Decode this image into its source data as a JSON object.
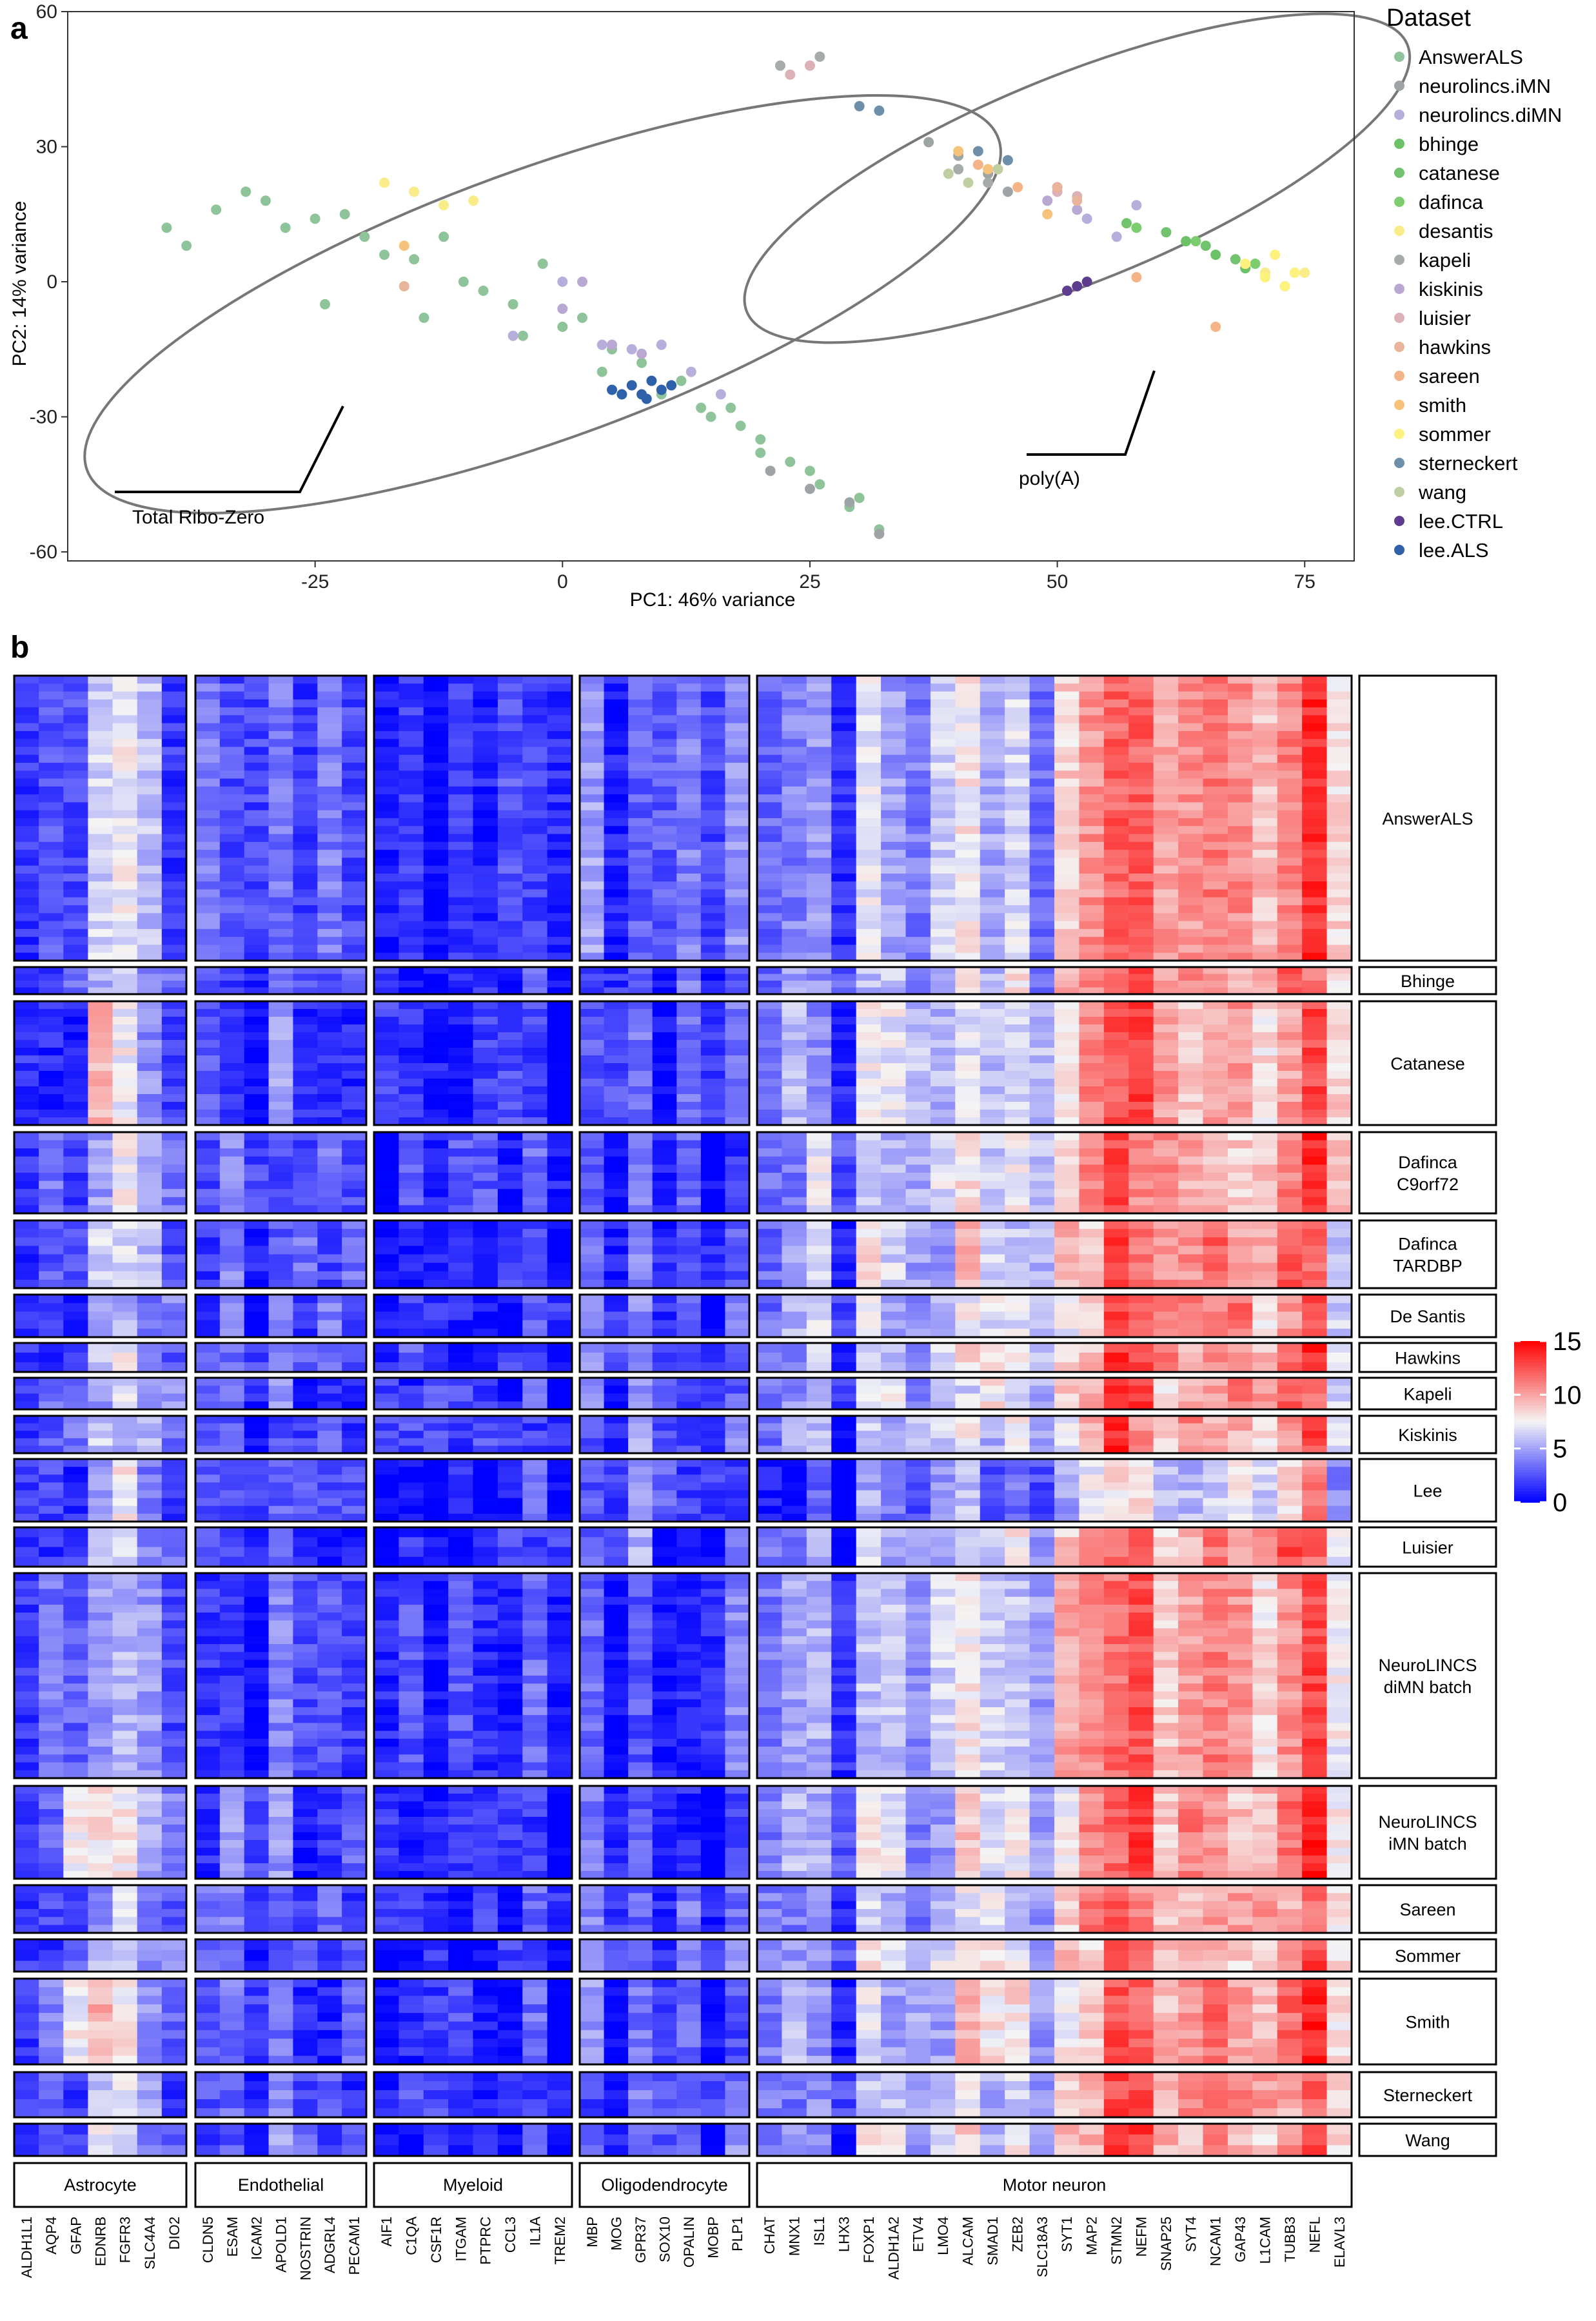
{
  "panels": {
    "a": "a",
    "b": "b"
  },
  "chart_data": [
    {
      "type": "scatter",
      "xlabel": "PC1: 46% variance",
      "ylabel": "PC2: 14% variance",
      "xlim": [
        -50,
        80
      ],
      "ylim": [
        -62,
        60
      ],
      "x_ticks": [
        -25,
        0,
        25,
        50,
        75
      ],
      "y_ticks": [
        -60,
        -30,
        0,
        30,
        60
      ],
      "grid": false,
      "legend_title": "Dataset",
      "legend_position": "right",
      "annotations": [
        "Total Ribo-Zero",
        "poly(A)"
      ],
      "ellipses": [
        {
          "label": "Total Ribo-Zero",
          "cx": -2,
          "cy": -5,
          "rx": 49,
          "ry": 30,
          "angle_deg": 20
        },
        {
          "label": "poly(A)",
          "cx": 52,
          "cy": 23,
          "rx": 36,
          "ry": 23,
          "angle_deg": 22
        }
      ],
      "series": [
        {
          "name": "AnswerALS",
          "color": "#8fc49a",
          "x": [
            -40,
            -35,
            -30,
            -25,
            -20,
            -15,
            -10,
            -5,
            0,
            5,
            -38,
            -28,
            -18,
            -8,
            2,
            8,
            -32,
            -22,
            -12,
            -2,
            4,
            10,
            15,
            20,
            23,
            26,
            29,
            32,
            20,
            25,
            30,
            14,
            18,
            -24,
            -14,
            -4,
            6,
            12,
            17
          ],
          "y": [
            12,
            16,
            18,
            14,
            10,
            5,
            0,
            -5,
            -10,
            -15,
            8,
            12,
            6,
            -2,
            -8,
            -18,
            20,
            15,
            10,
            4,
            -20,
            -25,
            -30,
            -35,
            -40,
            -45,
            -50,
            -55,
            -38,
            -42,
            -48,
            -28,
            -32,
            -5,
            -8,
            -12,
            -25,
            -22,
            -28
          ]
        },
        {
          "name": "neurolincs.iMN",
          "color": "#9ea3a5",
          "x": [
            21,
            25,
            29,
            32,
            37,
            40,
            43,
            45
          ],
          "y": [
            -42,
            -46,
            -49,
            -56,
            31,
            28,
            24,
            20
          ]
        },
        {
          "name": "neurolincs.diMN",
          "color": "#b7aedb",
          "x": [
            -5,
            0,
            4,
            7,
            10,
            13,
            16,
            50,
            53,
            56,
            58
          ],
          "y": [
            -12,
            0,
            -14,
            -15,
            -14,
            -20,
            -25,
            21,
            14,
            10,
            17
          ]
        },
        {
          "name": "bhinge",
          "color": "#6cc267",
          "x": [
            63,
            66,
            69
          ],
          "y": [
            9,
            6,
            3
          ]
        },
        {
          "name": "catanese",
          "color": "#72c36d",
          "x": [
            57,
            61,
            65,
            68,
            71
          ],
          "y": [
            13,
            11,
            8,
            5,
            2
          ]
        },
        {
          "name": "dafinca",
          "color": "#7ccd6d",
          "x": [
            58,
            64,
            70
          ],
          "y": [
            12,
            9,
            4
          ]
        },
        {
          "name": "desantis",
          "color": "#fbec8a",
          "x": [
            -18,
            -15,
            -12,
            -9,
            69,
            71,
            73,
            75
          ],
          "y": [
            22,
            20,
            17,
            18,
            4,
            2,
            -1,
            2
          ]
        },
        {
          "name": "kapeli",
          "color": "#a6aca9",
          "x": [
            22,
            26,
            40,
            43
          ],
          "y": [
            48,
            50,
            25,
            22
          ]
        },
        {
          "name": "kiskinis",
          "color": "#b9a8d2",
          "x": [
            0,
            2,
            5,
            8,
            49,
            52
          ],
          "y": [
            -6,
            0,
            -14,
            -16,
            18,
            16
          ]
        },
        {
          "name": "luisier",
          "color": "#dcb1b7",
          "x": [
            23,
            25,
            50,
            52
          ],
          "y": [
            46,
            48,
            20,
            19
          ]
        },
        {
          "name": "hawkins",
          "color": "#e9b49a",
          "x": [
            -16,
            50,
            52
          ],
          "y": [
            -1,
            21,
            18
          ]
        },
        {
          "name": "sareen",
          "color": "#f4b487",
          "x": [
            42,
            46,
            58,
            66
          ],
          "y": [
            26,
            21,
            1,
            -10
          ]
        },
        {
          "name": "smith",
          "color": "#f7c27a",
          "x": [
            -16,
            40,
            43,
            49
          ],
          "y": [
            8,
            29,
            25,
            15
          ]
        },
        {
          "name": "sommer",
          "color": "#fdf27d",
          "x": [
            69,
            71,
            73,
            74,
            72
          ],
          "y": [
            4,
            1,
            -1,
            2,
            6
          ]
        },
        {
          "name": "sterneckert",
          "color": "#6d8fa9",
          "x": [
            30,
            32,
            42,
            45
          ],
          "y": [
            39,
            38,
            29,
            27
          ]
        },
        {
          "name": "wang",
          "color": "#c0cfa2",
          "x": [
            39,
            41,
            44
          ],
          "y": [
            24,
            22,
            25
          ]
        },
        {
          "name": "lee.CTRL",
          "color": "#5e3d8e",
          "x": [
            51,
            52,
            53
          ],
          "y": [
            -2,
            -1,
            0
          ]
        },
        {
          "name": "lee.ALS",
          "color": "#2f61aa",
          "x": [
            5,
            7,
            8,
            9,
            10,
            11,
            6,
            8.5
          ],
          "y": [
            -24,
            -23,
            -25,
            -22,
            -24,
            -23,
            -25,
            -26
          ]
        }
      ]
    },
    {
      "type": "heatmap",
      "color_scale": {
        "min": 0,
        "max": 15,
        "ticks": [
          0,
          5,
          10,
          15
        ],
        "low": "#0000ff",
        "mid": "#f5f5f5",
        "high": "#ff0000"
      },
      "cell_groups": [
        {
          "name": "Astrocyte",
          "genes": [
            "ALDH1L1",
            "AQP4",
            "GFAP",
            "EDNRB",
            "FGFR3",
            "SLC4A4",
            "DIO2"
          ]
        },
        {
          "name": "Endothelial",
          "genes": [
            "CLDN5",
            "ESAM",
            "ICAM2",
            "APOLD1",
            "NOSTRIN",
            "ADGRL4",
            "PECAM1"
          ]
        },
        {
          "name": "Myeloid",
          "genes": [
            "AIF1",
            "C1QA",
            "CSF1R",
            "ITGAM",
            "PTPRC",
            "CCL3",
            "IL1A",
            "TREM2"
          ]
        },
        {
          "name": "Oligodendrocyte",
          "genes": [
            "MBP",
            "MOG",
            "GPR37",
            "SOX10",
            "OPALIN",
            "MOBP",
            "PLP1"
          ]
        },
        {
          "name": "Motor neuron",
          "genes": [
            "CHAT",
            "MNX1",
            "ISL1",
            "LHX3",
            "FOXP1",
            "ALDH1A2",
            "ETV4",
            "LMO4",
            "ALCAM",
            "SMAD1",
            "ZEB2",
            "SLC18A3",
            "SYT1",
            "MAP2",
            "STMN2",
            "NEFM",
            "SNAP25",
            "SYT4",
            "NCAM1",
            "GAP43",
            "L1CAM",
            "TUBB3",
            "NEFL",
            "ELAVL3"
          ]
        }
      ],
      "datasets": [
        {
          "label": [
            "AnswerALS"
          ],
          "samples": 36
        },
        {
          "label": [
            "Bhinge"
          ],
          "samples": 4
        },
        {
          "label": [
            "Catanese"
          ],
          "samples": 16
        },
        {
          "label": [
            "Dafinca",
            "C9orf72"
          ],
          "samples": 10
        },
        {
          "label": [
            "Dafinca",
            "TARDBP"
          ],
          "samples": 8
        },
        {
          "label": [
            "De Santis"
          ],
          "samples": 5
        },
        {
          "label": [
            "Hawkins"
          ],
          "samples": 3
        },
        {
          "label": [
            "Kapeli"
          ],
          "samples": 4
        },
        {
          "label": [
            "Kiskinis"
          ],
          "samples": 5
        },
        {
          "label": [
            "Lee"
          ],
          "samples": 8
        },
        {
          "label": [
            "Luisier"
          ],
          "samples": 4
        },
        {
          "label": [
            "NeuroLINCS",
            "diMN batch"
          ],
          "samples": 26
        },
        {
          "label": [
            "NeuroLINCS",
            "iMN batch"
          ],
          "samples": 12
        },
        {
          "label": [
            "Sareen"
          ],
          "samples": 6
        },
        {
          "label": [
            "Sommer"
          ],
          "samples": 3
        },
        {
          "label": [
            "Smith"
          ],
          "samples": 10
        },
        {
          "label": [
            "Sterneckert"
          ],
          "samples": 5
        },
        {
          "label": [
            "Wang"
          ],
          "samples": 3
        }
      ],
      "gene_mean_expression": {
        "ALDH1L1": 3,
        "AQP4": 2.5,
        "GFAP": 2,
        "EDNRB": 6,
        "FGFR3": 6.5,
        "SLC4A4": 4.5,
        "DIO2": 3,
        "CLDN5": 2.5,
        "ESAM": 3,
        "ICAM2": 1.5,
        "APOLD1": 3.5,
        "NOSTRIN": 2,
        "ADGRL4": 2.5,
        "PECAM1": 2,
        "AIF1": 1,
        "C1QA": 1.5,
        "CSF1R": 1.2,
        "ITGAM": 1.3,
        "PTPRC": 1.2,
        "CCL3": 1.5,
        "IL1A": 2,
        "TREM2": 0.5,
        "MBP": 3.5,
        "MOG": 1,
        "GPR37": 4,
        "SOX10": 1.5,
        "OPALIN": 2.5,
        "MOBP": 1,
        "PLP1": 3,
        "CHAT": 4,
        "MNX1": 4.5,
        "ISL1": 5.5,
        "LHX3": 1.5,
        "FOXP1": 7,
        "ALDH1A2": 6,
        "ETV4": 4.5,
        "LMO4": 6,
        "ALCAM": 8,
        "SMAD1": 6.5,
        "ZEB2": 7,
        "SLC18A3": 4.5,
        "SYT1": 8.5,
        "MAP2": 10,
        "STMN2": 12.5,
        "NEFM": 12,
        "SNAP25": 9.5,
        "SYT4": 10,
        "NCAM1": 10.5,
        "GAP43": 10,
        "L1CAM": 9.5,
        "TUBB3": 11,
        "NEFL": 13,
        "ELAVL3": 7.5
      }
    }
  ]
}
